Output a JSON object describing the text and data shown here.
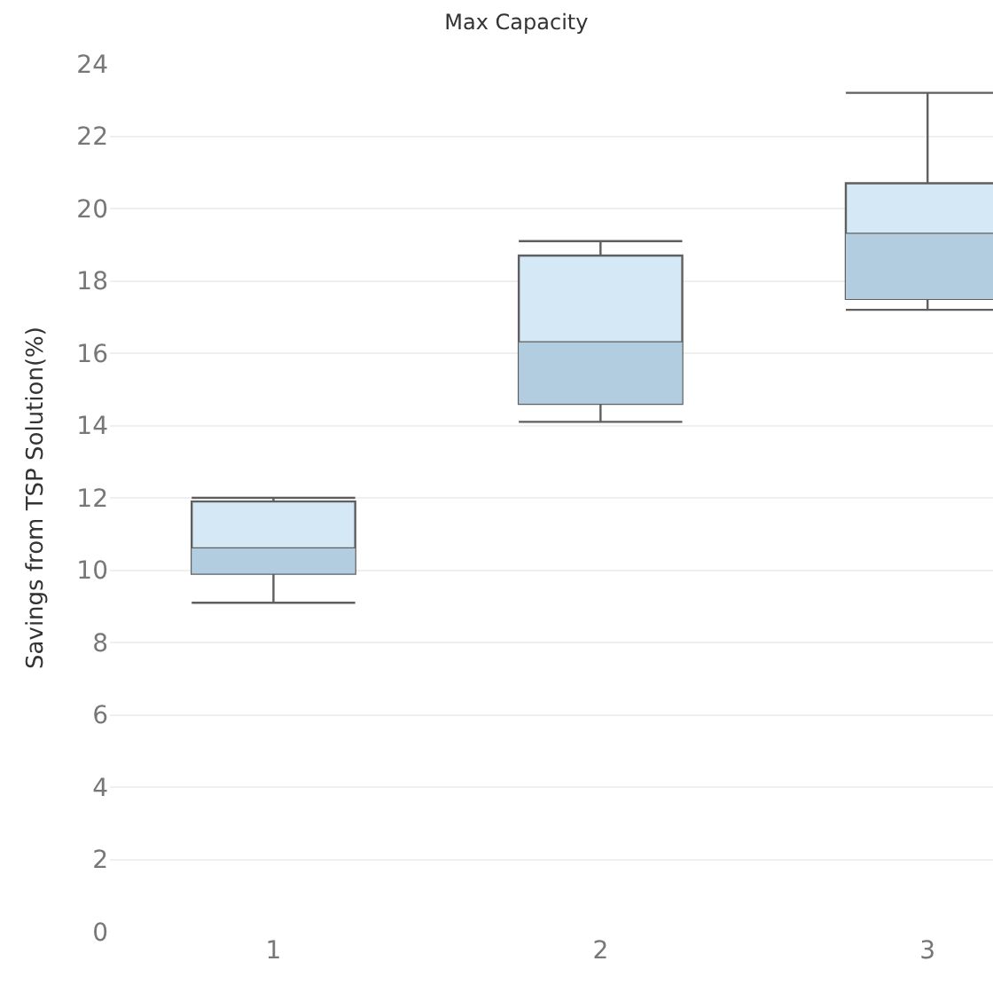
{
  "chart_data": {
    "type": "box",
    "title": "Max Capacity",
    "ylabel": "Savings from TSP Solution(%)",
    "categories": [
      "1",
      "2",
      "3"
    ],
    "series": [
      {
        "color": "#d5e8f6",
        "boxes": [
          {
            "low": 9.1,
            "q1": 9.9,
            "median": 10.6,
            "q3": 11.9,
            "high": 12.0
          },
          {
            "low": 14.1,
            "q1": 14.6,
            "median": 16.3,
            "q3": 18.7,
            "high": 19.1
          },
          {
            "low": 17.2,
            "q1": 17.5,
            "median": 19.3,
            "q3": 20.7,
            "high": 23.2
          }
        ]
      }
    ],
    "ylim": [
      0,
      24
    ],
    "yticks": [
      0,
      2,
      4,
      6,
      8,
      10,
      12,
      14,
      16,
      18,
      20,
      22,
      24
    ],
    "grid": "y"
  }
}
